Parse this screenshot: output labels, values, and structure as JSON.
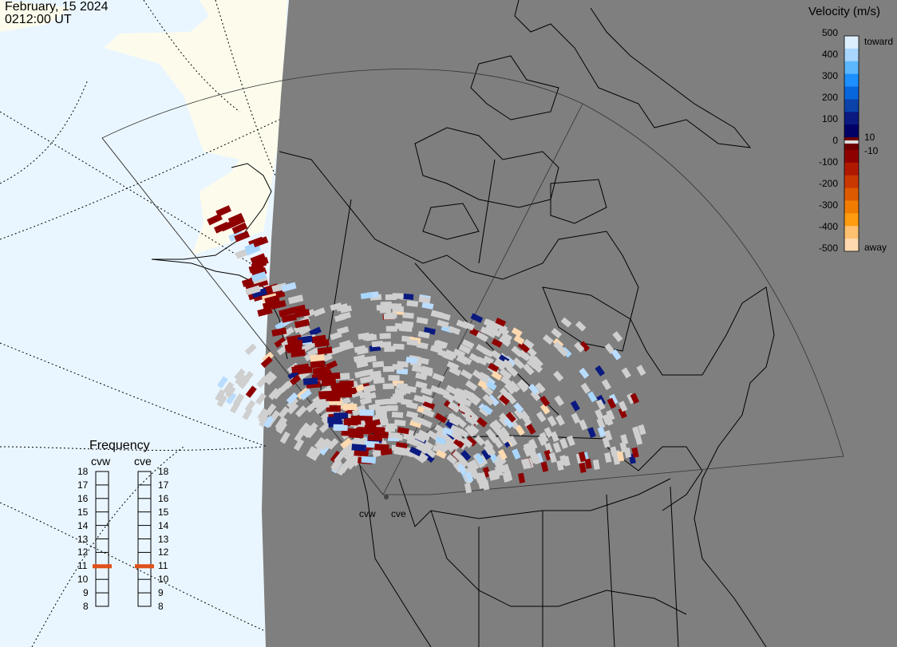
{
  "header": {
    "date": "February, 15 2024",
    "time": "0212:00 UT"
  },
  "velocity_legend": {
    "title": "Velocity (m/s)",
    "ticks": [
      "500",
      "400",
      "300",
      "200",
      "100",
      "10",
      "0",
      "-10",
      "-100",
      "-200",
      "-300",
      "-400",
      "-500"
    ],
    "toward_label": "toward",
    "away_label": "away",
    "colors": [
      "#ddeeff",
      "#a8d6ff",
      "#5db7ff",
      "#1d8fff",
      "#0866dd",
      "#0b43aa",
      "#0a1a80",
      "#000066",
      "#6e0000",
      "#8e0000",
      "#b01900",
      "#c93800",
      "#dd5a00",
      "#f07c00",
      "#ff9c10",
      "#ffc070",
      "#ffd9b0"
    ]
  },
  "frequency_legend": {
    "title": "Frequency",
    "radars": [
      {
        "name": "cvw",
        "frequency": 11
      },
      {
        "name": "cve",
        "frequency": 11
      }
    ],
    "ticks": [
      "18",
      "17",
      "16",
      "15",
      "14",
      "13",
      "12",
      "11",
      "10",
      "9",
      "8"
    ],
    "marker_color": "#e0501a"
  },
  "map": {
    "night_color": "#7f7f7f",
    "day_ocean_color": "#eaf6ff",
    "day_land_color": "#fdfcec",
    "radar_sites": [
      "cvw",
      "cve"
    ]
  }
}
